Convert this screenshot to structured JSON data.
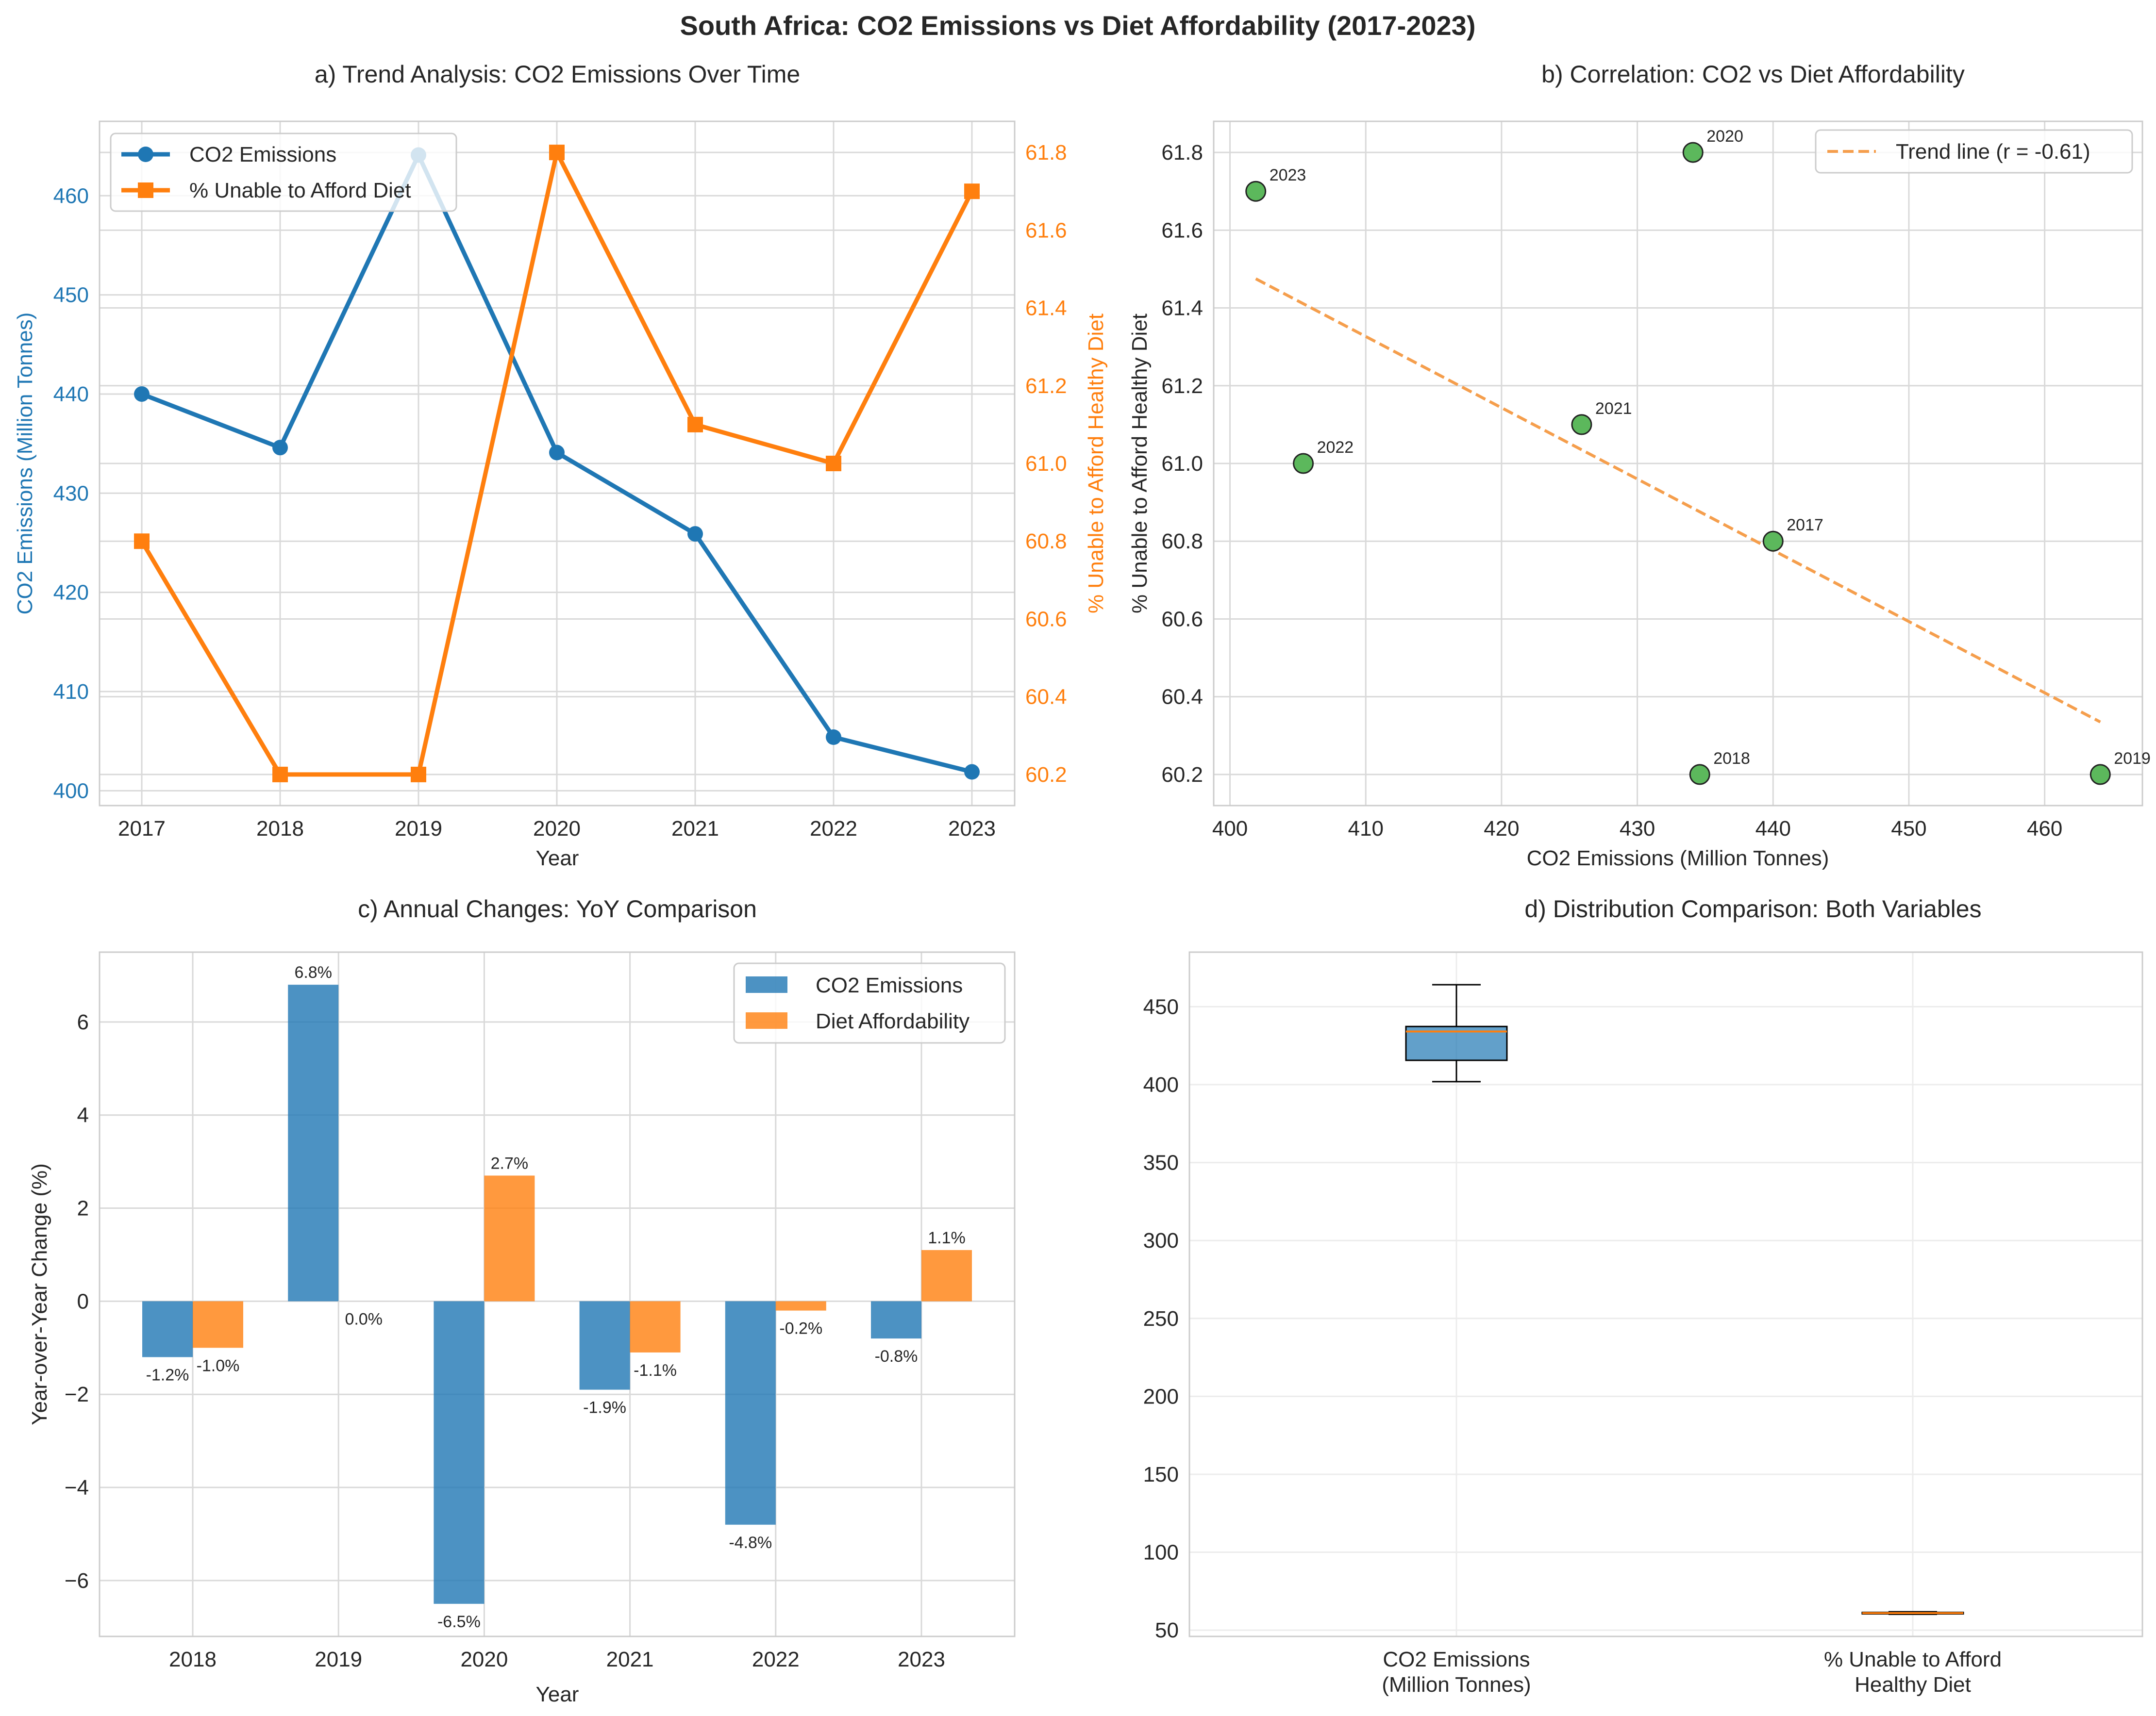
{
  "suptitle": "South Africa: CO2 Emissions vs Diet Affordability (2017-2023)",
  "colors": {
    "co2": "#1f77b4",
    "diet": "#ff7f0e",
    "scatter": "#5cb85c",
    "trend": "#f59e4c",
    "grid": "#d9d9d9",
    "frame": "#cccccc",
    "text": "#262626"
  },
  "chart_data": [
    {
      "id": "a",
      "type": "line",
      "title": "a) Trend Analysis: CO2 Emissions Over Time",
      "xlabel": "Year",
      "ylabel_left": "CO2 Emissions (Million Tonnes)",
      "ylabel_right": "% Unable to Afford Healthy Diet",
      "x": [
        "2017",
        "2018",
        "2019",
        "2020",
        "2021",
        "2022",
        "2023"
      ],
      "x_ticks": [
        "2017",
        "2018",
        "2019",
        "2020",
        "2021",
        "2022",
        "2023"
      ],
      "series": [
        {
          "name": "CO2 Emissions",
          "axis": "left",
          "marker": "circle",
          "values": [
            440.0,
            434.6,
            464.1,
            434.1,
            425.9,
            405.4,
            401.9
          ]
        },
        {
          "name": "% Unable to Afford Diet",
          "axis": "right",
          "marker": "square",
          "values": [
            60.8,
            60.2,
            60.2,
            61.8,
            61.1,
            61.0,
            61.7
          ]
        }
      ],
      "ylim_left": [
        398.5,
        467.5
      ],
      "ylim_right": [
        60.12,
        61.88
      ],
      "yticks_left": [
        "400",
        "410",
        "420",
        "430",
        "440",
        "450",
        "460"
      ],
      "yticks_right": [
        "60.2",
        "60.4",
        "60.6",
        "60.8",
        "61.0",
        "61.2",
        "61.4",
        "61.6",
        "61.8"
      ],
      "grid": true,
      "legend_position": "upper-left"
    },
    {
      "id": "b",
      "type": "scatter",
      "title": "b) Correlation: CO2 vs Diet Affordability",
      "xlabel": "CO2 Emissions (Million Tonnes)",
      "ylabel": "% Unable to Afford Healthy Diet",
      "points": [
        {
          "label": "2017",
          "x": 440.0,
          "y": 60.8
        },
        {
          "label": "2018",
          "x": 434.6,
          "y": 60.2
        },
        {
          "label": "2019",
          "x": 464.1,
          "y": 60.2
        },
        {
          "label": "2020",
          "x": 434.1,
          "y": 61.8
        },
        {
          "label": "2021",
          "x": 425.9,
          "y": 61.1
        },
        {
          "label": "2022",
          "x": 405.4,
          "y": 61.0
        },
        {
          "label": "2023",
          "x": 401.9,
          "y": 61.7
        }
      ],
      "trend": {
        "name": "Trend line (r = -0.61)",
        "x": [
          401.9,
          464.1
        ],
        "y": [
          61.475,
          60.335
        ]
      },
      "xlim": [
        398.8,
        467.2
      ],
      "ylim": [
        60.12,
        61.88
      ],
      "xticks": [
        "400",
        "410",
        "420",
        "430",
        "440",
        "450",
        "460"
      ],
      "yticks": [
        "60.2",
        "60.4",
        "60.6",
        "60.8",
        "61.0",
        "61.2",
        "61.4",
        "61.6",
        "61.8"
      ],
      "grid": true,
      "legend_position": "upper-right"
    },
    {
      "id": "c",
      "type": "bar",
      "title": "c) Annual Changes: YoY Comparison",
      "xlabel": "Year",
      "ylabel": "Year-over-Year Change (%)",
      "categories": [
        "2018",
        "2019",
        "2020",
        "2021",
        "2022",
        "2023"
      ],
      "series": [
        {
          "name": "CO2 Emissions",
          "values": [
            -1.2,
            6.8,
            -6.5,
            -1.9,
            -4.8,
            -0.8
          ],
          "labels": [
            "-1.2%",
            "6.8%",
            "-6.5%",
            "-1.9%",
            "-4.8%",
            "-0.8%"
          ]
        },
        {
          "name": "Diet Affordability",
          "values": [
            -1.0,
            0.0,
            2.7,
            -1.1,
            -0.2,
            1.1
          ],
          "labels": [
            "-1.0%",
            "0.0%",
            "2.7%",
            "-1.1%",
            "-0.2%",
            "1.1%"
          ]
        }
      ],
      "ylim": [
        -7.2,
        7.5
      ],
      "yticks": [
        "−6",
        "−4",
        "−2",
        "0",
        "2",
        "4",
        "6"
      ],
      "grid": true,
      "legend_position": "upper-right"
    },
    {
      "id": "d",
      "type": "box",
      "title": "d) Distribution Comparison: Both Variables",
      "categories": [
        [
          "CO2 Emissions",
          "(Million Tonnes)"
        ],
        [
          "% Unable to Afford",
          "Healthy Diet"
        ]
      ],
      "boxes": [
        {
          "min": 401.9,
          "q1": 415.6,
          "median": 434.1,
          "q3": 437.3,
          "max": 464.1
        },
        {
          "min": 60.2,
          "q1": 60.5,
          "median": 61.0,
          "q3": 61.4,
          "max": 61.8
        }
      ],
      "ylim": [
        46,
        485
      ],
      "yticks": [
        "50",
        "100",
        "150",
        "200",
        "250",
        "300",
        "350",
        "400",
        "450"
      ],
      "grid": true
    }
  ]
}
